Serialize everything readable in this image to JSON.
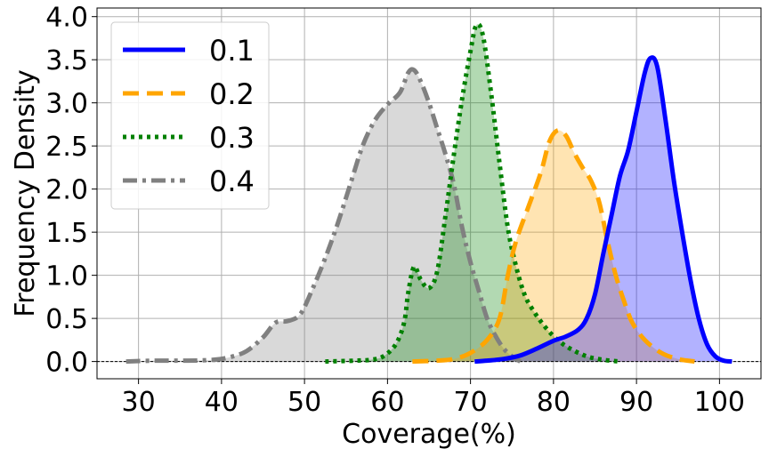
{
  "chart_data": {
    "type": "area",
    "xlabel": "Coverage(%)",
    "ylabel": "Frequency Density",
    "xlim": [
      25,
      105
    ],
    "ylim": [
      -0.2,
      4.1
    ],
    "xticks": [
      "30",
      "40",
      "50",
      "60",
      "70",
      "80",
      "90",
      "100"
    ],
    "yticks": [
      "0.0",
      "0.5",
      "1.0",
      "1.5",
      "2.0",
      "2.5",
      "3.0",
      "3.5",
      "4.0"
    ],
    "grid": true,
    "legend_position": "top-left",
    "series": [
      {
        "name": "0.1",
        "color": "#0000ff",
        "fill": "#0000ff",
        "dash": "solid",
        "points": [
          [
            70.5,
            0
          ],
          [
            72,
            0.01
          ],
          [
            74,
            0.03
          ],
          [
            76,
            0.07
          ],
          [
            78,
            0.15
          ],
          [
            80,
            0.24
          ],
          [
            81.5,
            0.29
          ],
          [
            83,
            0.37
          ],
          [
            84,
            0.5
          ],
          [
            85,
            0.78
          ],
          [
            86,
            1.25
          ],
          [
            87,
            1.7
          ],
          [
            88,
            2.15
          ],
          [
            89,
            2.45
          ],
          [
            90,
            2.9
          ],
          [
            91,
            3.35
          ],
          [
            91.7,
            3.52
          ],
          [
            92.5,
            3.42
          ],
          [
            93.5,
            2.8
          ],
          [
            94.5,
            2.1
          ],
          [
            95.5,
            1.5
          ],
          [
            96.5,
            0.95
          ],
          [
            97.5,
            0.5
          ],
          [
            98.5,
            0.2
          ],
          [
            99.5,
            0.06
          ],
          [
            100.5,
            0.01
          ],
          [
            101.5,
            0
          ]
        ]
      },
      {
        "name": "0.2",
        "color": "#ffa500",
        "fill": "#ffa500",
        "dash": "dashed",
        "points": [
          [
            63,
            0
          ],
          [
            66,
            0.01
          ],
          [
            68,
            0.03
          ],
          [
            70,
            0.1
          ],
          [
            72,
            0.25
          ],
          [
            73.5,
            0.5
          ],
          [
            74.5,
            1.0
          ],
          [
            75.5,
            1.4
          ],
          [
            77,
            1.8
          ],
          [
            78.5,
            2.2
          ],
          [
            79.5,
            2.55
          ],
          [
            80.5,
            2.68
          ],
          [
            81.5,
            2.62
          ],
          [
            82.5,
            2.42
          ],
          [
            83.5,
            2.25
          ],
          [
            84.5,
            2.1
          ],
          [
            85.5,
            1.85
          ],
          [
            86.5,
            1.4
          ],
          [
            87.5,
            1.0
          ],
          [
            88.5,
            0.7
          ],
          [
            89.5,
            0.45
          ],
          [
            91,
            0.25
          ],
          [
            93,
            0.1
          ],
          [
            95,
            0.03
          ],
          [
            97,
            0
          ]
        ]
      },
      {
        "name": "0.3",
        "color": "#008000",
        "fill": "#008000",
        "dash": "dotted",
        "points": [
          [
            52.5,
            0
          ],
          [
            56,
            0.01
          ],
          [
            58,
            0.02
          ],
          [
            59.5,
            0.06
          ],
          [
            61,
            0.2
          ],
          [
            62,
            0.45
          ],
          [
            62.5,
            0.8
          ],
          [
            63.2,
            1.1
          ],
          [
            64,
            0.95
          ],
          [
            65,
            0.85
          ],
          [
            66,
            1.05
          ],
          [
            67,
            1.7
          ],
          [
            68,
            2.4
          ],
          [
            69,
            3.05
          ],
          [
            70,
            3.6
          ],
          [
            70.7,
            3.9
          ],
          [
            71.5,
            3.78
          ],
          [
            72.5,
            3.1
          ],
          [
            73.5,
            2.3
          ],
          [
            74.5,
            1.55
          ],
          [
            75.5,
            1.1
          ],
          [
            76.5,
            0.78
          ],
          [
            77.5,
            0.6
          ],
          [
            79,
            0.4
          ],
          [
            80.5,
            0.25
          ],
          [
            82,
            0.15
          ],
          [
            84,
            0.06
          ],
          [
            86,
            0.02
          ],
          [
            88,
            0
          ]
        ]
      },
      {
        "name": "0.4",
        "color": "#808080",
        "fill": "#808080",
        "dash": "dashdot",
        "points": [
          [
            28.5,
            0
          ],
          [
            32,
            0.01
          ],
          [
            36,
            0.01
          ],
          [
            39,
            0.02
          ],
          [
            41,
            0.05
          ],
          [
            43,
            0.12
          ],
          [
            45,
            0.28
          ],
          [
            46.5,
            0.45
          ],
          [
            48,
            0.47
          ],
          [
            49.5,
            0.55
          ],
          [
            51,
            0.85
          ],
          [
            52.5,
            1.2
          ],
          [
            54,
            1.6
          ],
          [
            55.5,
            2.05
          ],
          [
            57,
            2.5
          ],
          [
            58.5,
            2.8
          ],
          [
            60,
            2.98
          ],
          [
            61.5,
            3.12
          ],
          [
            62.5,
            3.35
          ],
          [
            63.2,
            3.38
          ],
          [
            64,
            3.25
          ],
          [
            65,
            3.0
          ],
          [
            66,
            2.7
          ],
          [
            67,
            2.4
          ],
          [
            68,
            2.05
          ],
          [
            69,
            1.55
          ],
          [
            70,
            1.15
          ],
          [
            71,
            0.82
          ],
          [
            72,
            0.5
          ],
          [
            73,
            0.3
          ],
          [
            74,
            0.15
          ],
          [
            75,
            0.06
          ],
          [
            76,
            0
          ]
        ]
      }
    ]
  }
}
